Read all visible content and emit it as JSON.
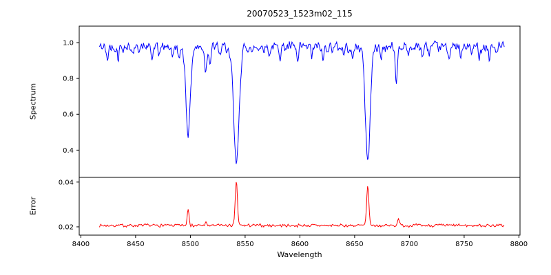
{
  "figure": {
    "title": "20070523_1523m02_115"
  },
  "chart_data": [
    {
      "type": "line",
      "name": "spectrum",
      "title": "20070523_1523m02_115",
      "ylabel": "Spectrum",
      "legend": "none",
      "grid": false,
      "color": "#0000ff",
      "xlim": [
        8398.5,
        8801
      ],
      "ylim": [
        0.248,
        1.092
      ],
      "yticks": [
        0.4,
        0.6,
        0.8,
        1.0
      ],
      "ytick_labels": [
        "0.4",
        "0.6",
        "0.8",
        "1.0"
      ],
      "x_start": 8417,
      "x_end": 8787,
      "x_step": 0.6,
      "continuum": 0.975,
      "noise_amplitude": 0.035,
      "absorption_lines": [
        {
          "center": 8424,
          "depth": 0.08,
          "sigma": 0.8
        },
        {
          "center": 8434,
          "depth": 0.06,
          "sigma": 0.7
        },
        {
          "center": 8448,
          "depth": 0.05,
          "sigma": 0.7
        },
        {
          "center": 8465,
          "depth": 0.07,
          "sigma": 0.8
        },
        {
          "center": 8471,
          "depth": 0.05,
          "sigma": 0.6
        },
        {
          "center": 8484,
          "depth": 0.06,
          "sigma": 0.7
        },
        {
          "center": 8490,
          "depth": 0.08,
          "sigma": 0.8
        },
        {
          "center": 8498,
          "depth": 0.48,
          "sigma": 2.0
        },
        {
          "center": 8514,
          "depth": 0.13,
          "sigma": 1.0
        },
        {
          "center": 8518,
          "depth": 0.09,
          "sigma": 0.8
        },
        {
          "center": 8527,
          "depth": 0.05,
          "sigma": 0.7
        },
        {
          "center": 8536,
          "depth": 0.06,
          "sigma": 0.7
        },
        {
          "center": 8542,
          "depth": 0.655,
          "sigma": 2.4
        },
        {
          "center": 8556,
          "depth": 0.05,
          "sigma": 0.6
        },
        {
          "center": 8572,
          "depth": 0.05,
          "sigma": 0.6
        },
        {
          "center": 8582,
          "depth": 0.05,
          "sigma": 0.6
        },
        {
          "center": 8598,
          "depth": 0.09,
          "sigma": 0.9
        },
        {
          "center": 8611,
          "depth": 0.05,
          "sigma": 0.7
        },
        {
          "center": 8621,
          "depth": 0.08,
          "sigma": 0.8
        },
        {
          "center": 8640,
          "depth": 0.05,
          "sigma": 0.6
        },
        {
          "center": 8648,
          "depth": 0.08,
          "sigma": 0.8
        },
        {
          "center": 8662,
          "depth": 0.63,
          "sigma": 2.2
        },
        {
          "center": 8674,
          "depth": 0.07,
          "sigma": 0.7
        },
        {
          "center": 8688,
          "depth": 0.2,
          "sigma": 0.9
        },
        {
          "center": 8699,
          "depth": 0.05,
          "sigma": 0.6
        },
        {
          "center": 8712,
          "depth": 0.06,
          "sigma": 0.7
        },
        {
          "center": 8718,
          "depth": 0.04,
          "sigma": 0.6
        },
        {
          "center": 8736,
          "depth": 0.06,
          "sigma": 0.7
        },
        {
          "center": 8747,
          "depth": 0.07,
          "sigma": 0.7
        },
        {
          "center": 8757,
          "depth": 0.04,
          "sigma": 0.6
        },
        {
          "center": 8764,
          "depth": 0.05,
          "sigma": 0.6
        },
        {
          "center": 8773,
          "depth": 0.07,
          "sigma": 0.7
        },
        {
          "center": 8780,
          "depth": 0.04,
          "sigma": 0.6
        }
      ]
    },
    {
      "type": "line",
      "name": "error",
      "ylabel": "Error",
      "xlabel": "Wavelength",
      "legend": "none",
      "grid": false,
      "color": "#ff0000",
      "xlim": [
        8398.5,
        8801
      ],
      "ylim": [
        0.0163,
        0.0421
      ],
      "yticks": [
        0.02,
        0.04
      ],
      "ytick_labels": [
        "0.02",
        "0.04"
      ],
      "xticks": [
        8400,
        8450,
        8500,
        8550,
        8600,
        8650,
        8700,
        8750,
        8800
      ],
      "xtick_labels": [
        "8400",
        "8450",
        "8500",
        "8550",
        "8600",
        "8650",
        "8700",
        "8750",
        "8800"
      ],
      "x_start": 8417,
      "x_end": 8787,
      "x_step": 0.6,
      "baseline": 0.0206,
      "noise_amplitude": 0.0008,
      "emission_peaks": [
        {
          "center": 8498,
          "height": 0.0075,
          "sigma": 0.9
        },
        {
          "center": 8514,
          "height": 0.0012,
          "sigma": 0.8
        },
        {
          "center": 8542,
          "height": 0.0196,
          "sigma": 1.0
        },
        {
          "center": 8662,
          "height": 0.0176,
          "sigma": 1.0
        },
        {
          "center": 8690,
          "height": 0.0035,
          "sigma": 0.8
        }
      ]
    }
  ]
}
